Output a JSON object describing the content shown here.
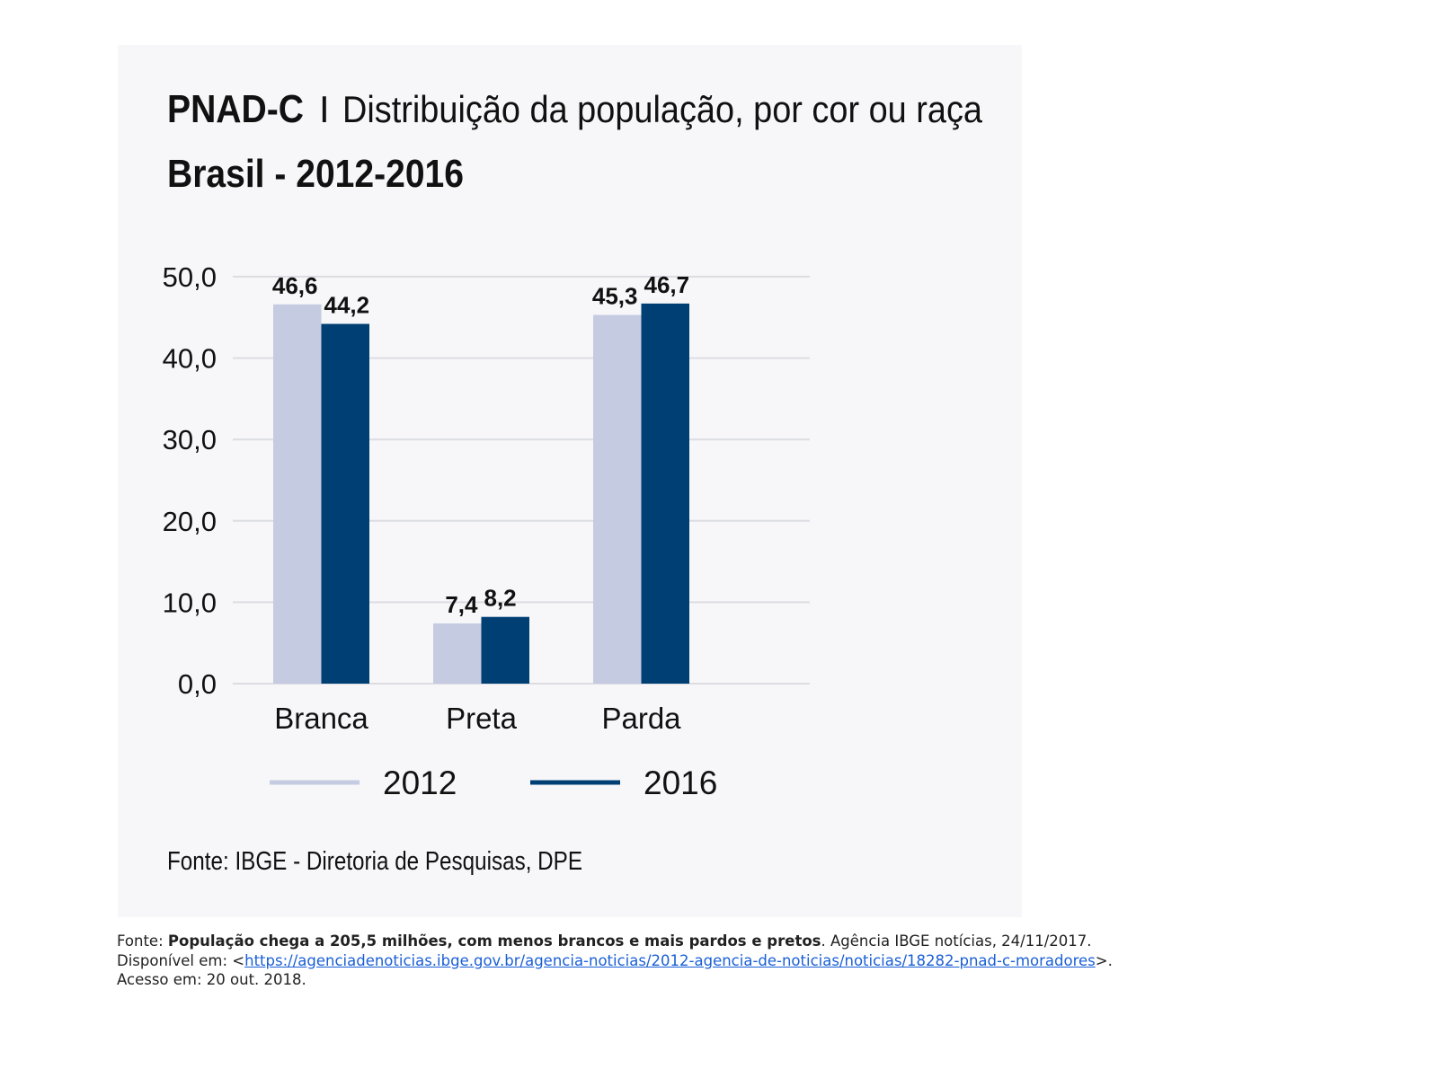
{
  "chart_data": {
    "type": "bar",
    "title_bold": "PNAD-C",
    "title_separator": "I",
    "title": "Distribuição da população, por cor ou raça",
    "subtitle": "Brasil - 2012-2016",
    "categories": [
      "Branca",
      "Preta",
      "Parda"
    ],
    "series": [
      {
        "name": "2012",
        "values": [
          46.6,
          7.4,
          45.3
        ],
        "labels": [
          "46,6",
          "7,4",
          "45,3"
        ],
        "color": "#c5cbe0"
      },
      {
        "name": "2016",
        "values": [
          44.2,
          8.2,
          46.7
        ],
        "labels": [
          "44,2",
          "8,2",
          "46,7"
        ],
        "color": "#003f74"
      }
    ],
    "yticks": [
      0,
      10,
      20,
      30,
      40,
      50
    ],
    "ytick_labels": [
      "0,0",
      "10,0",
      "20,0",
      "30,0",
      "40,0",
      "50,0"
    ],
    "ylim": [
      0,
      50
    ],
    "grid": true,
    "legend_placement": "bottom",
    "source": "Fonte: IBGE - Diretoria de Pesquisas, DPE"
  },
  "caption": {
    "prefix": "Fonte: ",
    "bold": "População chega a 205,5 milhões, com menos brancos e mais pardos e pretos",
    "middle": ". Agência IBGE notícias, 24/11/2017. Disponível em: <",
    "link": "https://agenciadenoticias.ibge.gov.br/agencia-noticias/2012-agencia-de-noticias/noticias/18282-pnad-c-moradores",
    "suffix": ">. Acesso em: 20 out. 2018."
  }
}
